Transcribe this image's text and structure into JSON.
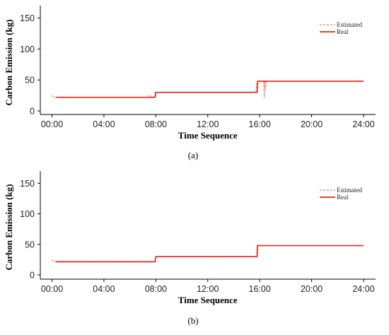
{
  "chart_data": [
    {
      "type": "line",
      "panel_label": "(a)",
      "xlabel": "Time Sequence",
      "ylabel": "Carbon Emission (kg)",
      "x_ticks": [
        "00:00",
        "04:00",
        "08:00",
        "12:00",
        "16:00",
        "20:00",
        "24:00"
      ],
      "y_ticks": [
        0,
        50,
        100,
        150
      ],
      "xlim": [
        0,
        24
      ],
      "ylim": [
        0,
        170
      ],
      "grid": false,
      "legend_position": "top-right",
      "series": [
        {
          "name": "Estimated",
          "style": "dashed",
          "color": "#e8826b",
          "x": [
            0,
            0.1,
            0.3,
            7.5,
            7.55,
            7.6,
            7.9,
            7.95,
            8.0,
            15.7,
            15.8,
            15.85,
            16.0,
            16.3,
            16.35,
            16.4,
            16.45,
            16.5,
            24
          ],
          "y": [
            25,
            22,
            22,
            22,
            25,
            22,
            22,
            30,
            30,
            30,
            48,
            48,
            48,
            48,
            22,
            48,
            35,
            48,
            48
          ]
        },
        {
          "name": "Real",
          "style": "solid",
          "color": "#e8231a",
          "x": [
            0.3,
            7.95,
            8.0,
            15.8,
            15.85,
            24
          ],
          "y": [
            22,
            22,
            30,
            30,
            48,
            48
          ]
        }
      ]
    },
    {
      "type": "line",
      "panel_label": "(b)",
      "xlabel": "Time Sequence",
      "ylabel": "Carbon Emission (kg)",
      "x_ticks": [
        "00:00",
        "04:00",
        "08:00",
        "12:00",
        "16:00",
        "20:00",
        "24:00"
      ],
      "y_ticks": [
        0,
        50,
        100,
        150
      ],
      "xlim": [
        0,
        24
      ],
      "ylim": [
        0,
        170
      ],
      "grid": false,
      "legend_position": "top-right",
      "series": [
        {
          "name": "Estimated",
          "style": "dashed",
          "color": "#e8826b",
          "x": [
            0,
            0.1,
            0.3,
            7.95,
            8.0,
            15.75,
            15.8,
            24
          ],
          "y": [
            25,
            22,
            22,
            22,
            30,
            30,
            48,
            48
          ]
        },
        {
          "name": "Real",
          "style": "solid",
          "color": "#e8231a",
          "x": [
            0.3,
            7.95,
            8.0,
            15.8,
            15.85,
            24
          ],
          "y": [
            21.5,
            21.5,
            30,
            30,
            48,
            48
          ]
        }
      ]
    }
  ]
}
